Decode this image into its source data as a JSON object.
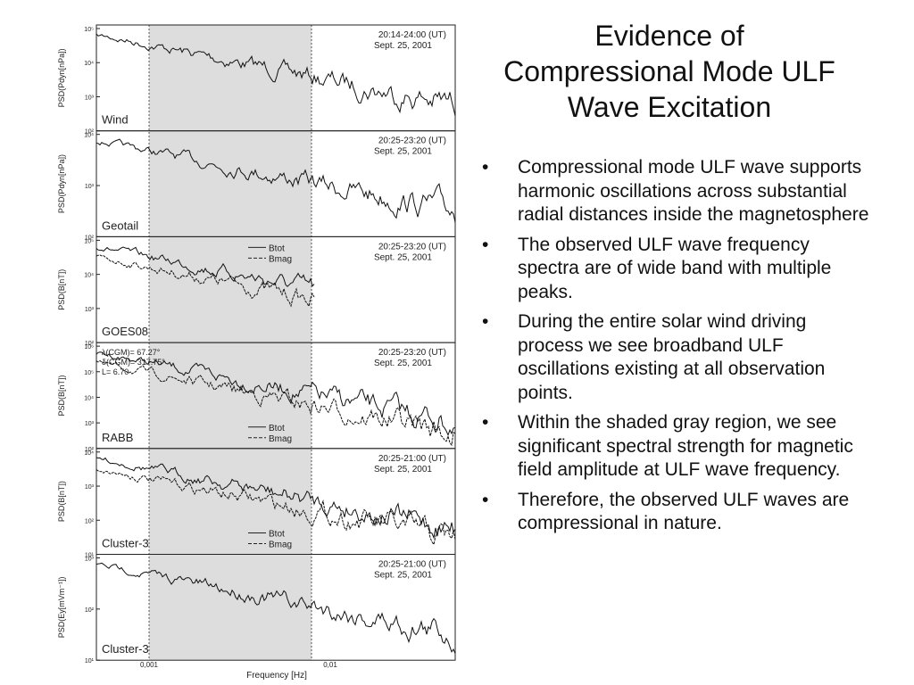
{
  "title_lines": [
    "Evidence of",
    "Compressional Mode ULF",
    "Wave Excitation"
  ],
  "bullets": [
    "Compressional mode ULF wave supports harmonic oscillations across substantial radial distances inside the magnetosphere",
    "The observed ULF wave frequency spectra are of wide band with multiple peaks.",
    "During the entire solar wind driving process we see broadband ULF oscillations existing at all observation points.",
    "Within the shaded gray region, we see significant spectral strength for magnetic field amplitude at ULF wave frequency.",
    "Therefore, the observed ULF waves are compressional in nature."
  ],
  "figure": {
    "x_label": "Frequency [Hz]",
    "x_ticks": [
      "0,001",
      "0,01"
    ],
    "panels": [
      {
        "label": "Wind",
        "time": "20:14-24:00 (UT)",
        "date": "Sept. 25, 2001",
        "y_label": "PSD(Pdyn[nPa])",
        "y_ticks": [
          "10⁵",
          "10⁴",
          "10³",
          "10²"
        ]
      },
      {
        "label": "Geotail",
        "time": "20:25-23:20 (UT)",
        "date": "Sept. 25, 2001",
        "y_label": "PSD(Pdyn[nPa])",
        "y_ticks": [
          "10⁴",
          "10³",
          "10²"
        ]
      },
      {
        "label": "GOES08",
        "time": "20:25-23:20 (UT)",
        "date": "Sept. 25, 2001",
        "y_label": "PSD(B[nT])",
        "y_ticks": [
          "10⁵",
          "10⁴",
          "10³",
          "10²"
        ],
        "legend": [
          "Btot",
          "Bmag"
        ],
        "legend_position": "top"
      },
      {
        "label": "RABB",
        "time": "20:25-23:20 (UT)",
        "date": "Sept. 25, 2001",
        "y_label": "PSD(B[nT])",
        "y_ticks": [
          "10⁶",
          "10⁵",
          "10⁴",
          "10³",
          "10²"
        ],
        "legend": [
          "Btot",
          "Bmag"
        ],
        "legend_position": "bottom",
        "annotations": [
          "λ(CGM)= 67.27°",
          "δ(CGM)= 317.75°",
          "L= 6.70"
        ]
      },
      {
        "label": "Cluster-3",
        "time": "20:25-21:00 (UT)",
        "date": "Sept. 25, 2001",
        "y_label": "PSD(B[nT])",
        "y_ticks": [
          "10⁴",
          "10³",
          "10²",
          "10¹"
        ],
        "legend": [
          "Btot",
          "Bmag"
        ],
        "legend_position": "bottom"
      },
      {
        "label": "Cluster-3",
        "time": "20:25-21:00 (UT)",
        "date": "Sept. 25, 2001",
        "y_label": "PSD(Ey[mVm⁻¹])",
        "y_ticks": [
          "10³",
          "10²",
          "10¹"
        ]
      }
    ]
  }
}
